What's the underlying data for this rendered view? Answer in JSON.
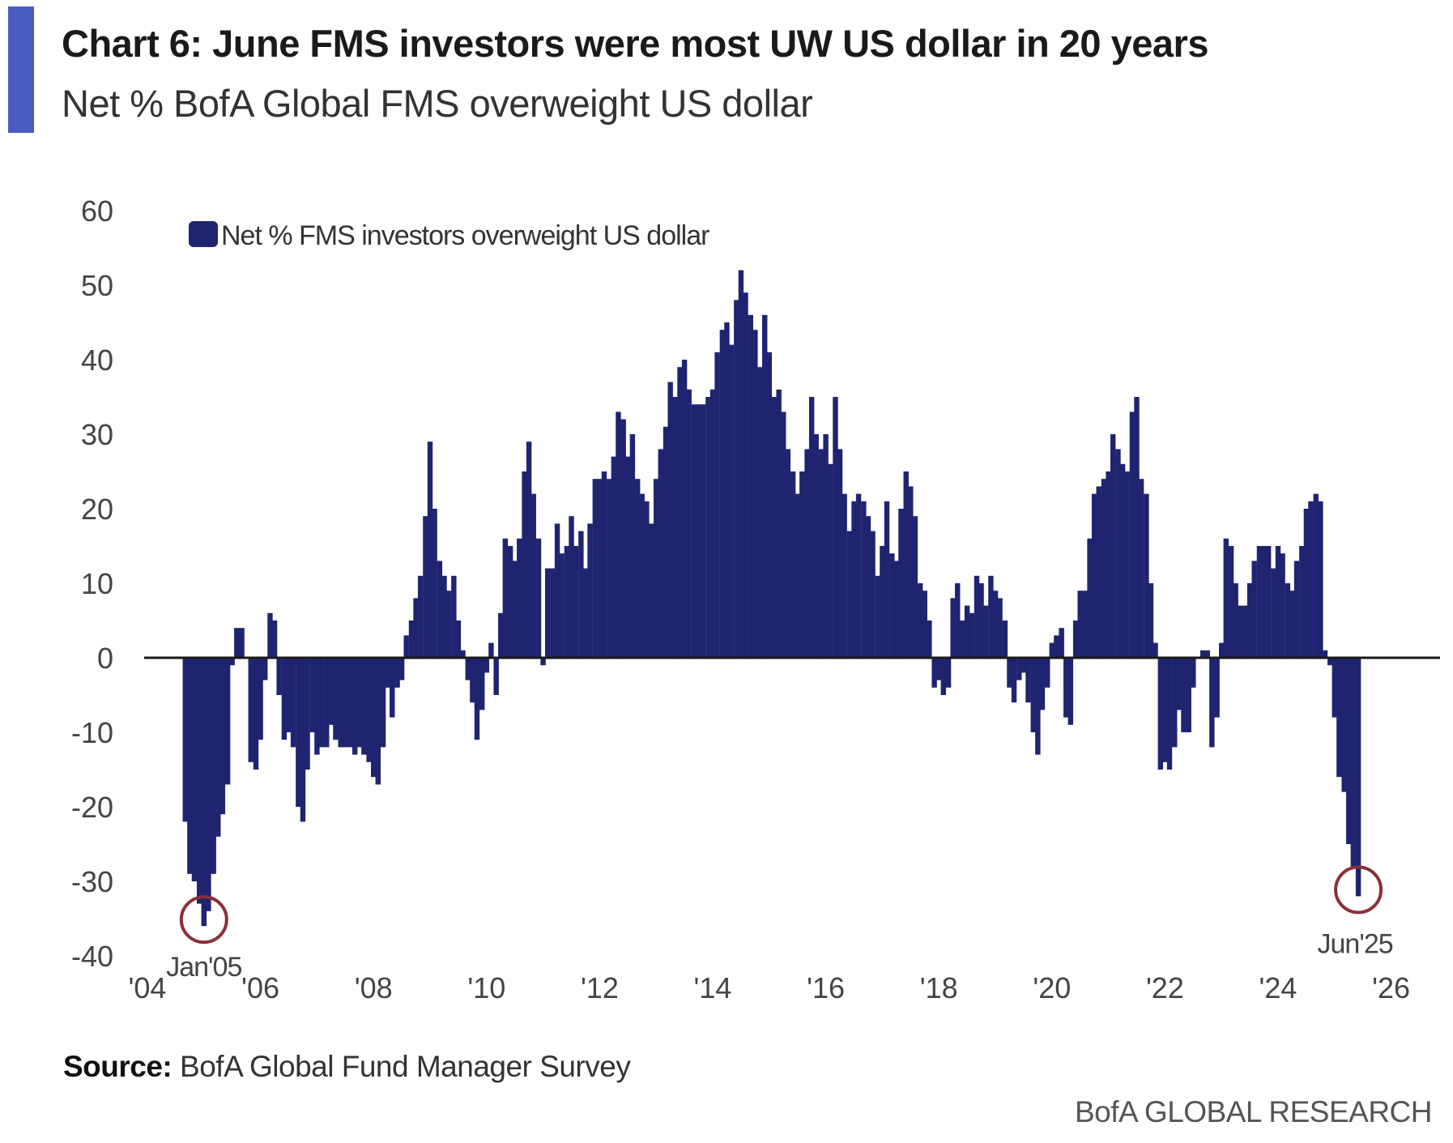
{
  "chart_data": {
    "type": "bar",
    "title": "Chart 6: June FMS investors were most UW US dollar in 20 years",
    "subtitle": "Net % BofA Global FMS overweight US dollar",
    "legend": {
      "label": "Net % FMS investors overweight US dollar",
      "position": "top-left"
    },
    "xlabel": "",
    "ylabel": "",
    "ylim": [
      -40,
      60
    ],
    "yticks": [
      60,
      50,
      40,
      30,
      20,
      10,
      0,
      -10,
      -20,
      -30,
      -40
    ],
    "xlim": [
      2004,
      2026.5
    ],
    "xticks": [
      {
        "year": 2004,
        "label": "'04"
      },
      {
        "year": 2006,
        "label": "'06"
      },
      {
        "year": 2008,
        "label": "'08"
      },
      {
        "year": 2010,
        "label": "'10"
      },
      {
        "year": 2012,
        "label": "'12"
      },
      {
        "year": 2014,
        "label": "'14"
      },
      {
        "year": 2016,
        "label": "'16"
      },
      {
        "year": 2018,
        "label": "'18"
      },
      {
        "year": 2020,
        "label": "'20"
      },
      {
        "year": 2022,
        "label": "'22"
      },
      {
        "year": 2024,
        "label": "'24"
      },
      {
        "year": 2026,
        "label": "'26"
      }
    ],
    "grid": false,
    "series": [
      {
        "name": "Net % FMS investors overweight US dollar",
        "color": "#1f2470",
        "points": [
          [
            2004.67,
            -22
          ],
          [
            2004.75,
            -29
          ],
          [
            2004.83,
            -30
          ],
          [
            2004.92,
            -33
          ],
          [
            2005.0,
            -36
          ],
          [
            2005.08,
            -34
          ],
          [
            2005.17,
            -29
          ],
          [
            2005.25,
            -24
          ],
          [
            2005.33,
            -21
          ],
          [
            2005.42,
            -17
          ],
          [
            2005.5,
            -1
          ],
          [
            2005.58,
            4
          ],
          [
            2005.67,
            4
          ],
          [
            2005.75,
            0
          ],
          [
            2005.83,
            -14
          ],
          [
            2005.92,
            -15
          ],
          [
            2006.0,
            -11
          ],
          [
            2006.08,
            -3
          ],
          [
            2006.17,
            6
          ],
          [
            2006.25,
            5
          ],
          [
            2006.33,
            -5
          ],
          [
            2006.42,
            -11
          ],
          [
            2006.5,
            -10
          ],
          [
            2006.58,
            -12
          ],
          [
            2006.67,
            -20
          ],
          [
            2006.75,
            -22
          ],
          [
            2006.83,
            -15
          ],
          [
            2006.92,
            -10
          ],
          [
            2007.0,
            -13
          ],
          [
            2007.08,
            -12
          ],
          [
            2007.17,
            -12
          ],
          [
            2007.25,
            -9
          ],
          [
            2007.33,
            -11
          ],
          [
            2007.42,
            -12
          ],
          [
            2007.5,
            -12
          ],
          [
            2007.58,
            -12
          ],
          [
            2007.67,
            -13
          ],
          [
            2007.75,
            -12
          ],
          [
            2007.83,
            -13
          ],
          [
            2007.92,
            -14
          ],
          [
            2008.0,
            -16
          ],
          [
            2008.08,
            -17
          ],
          [
            2008.17,
            -12
          ],
          [
            2008.25,
            -4
          ],
          [
            2008.33,
            -8
          ],
          [
            2008.42,
            -4
          ],
          [
            2008.5,
            -3
          ],
          [
            2008.58,
            3
          ],
          [
            2008.67,
            5
          ],
          [
            2008.75,
            8
          ],
          [
            2008.83,
            11
          ],
          [
            2008.92,
            19
          ],
          [
            2009.0,
            29
          ],
          [
            2009.08,
            20
          ],
          [
            2009.17,
            13
          ],
          [
            2009.25,
            11
          ],
          [
            2009.33,
            9
          ],
          [
            2009.42,
            11
          ],
          [
            2009.5,
            5
          ],
          [
            2009.58,
            1
          ],
          [
            2009.67,
            -3
          ],
          [
            2009.75,
            -6
          ],
          [
            2009.83,
            -11
          ],
          [
            2009.92,
            -7
          ],
          [
            2010.0,
            -2
          ],
          [
            2010.08,
            2
          ],
          [
            2010.17,
            -5
          ],
          [
            2010.25,
            6
          ],
          [
            2010.33,
            16
          ],
          [
            2010.42,
            15
          ],
          [
            2010.5,
            13
          ],
          [
            2010.58,
            16
          ],
          [
            2010.67,
            25
          ],
          [
            2010.75,
            29
          ],
          [
            2010.83,
            22
          ],
          [
            2010.92,
            16
          ],
          [
            2011.0,
            -1
          ],
          [
            2011.08,
            12
          ],
          [
            2011.17,
            12
          ],
          [
            2011.25,
            18
          ],
          [
            2011.33,
            14
          ],
          [
            2011.42,
            15
          ],
          [
            2011.5,
            19
          ],
          [
            2011.58,
            15
          ],
          [
            2011.67,
            17
          ],
          [
            2011.75,
            12
          ],
          [
            2011.83,
            18
          ],
          [
            2011.92,
            24
          ],
          [
            2012.0,
            24
          ],
          [
            2012.08,
            25
          ],
          [
            2012.17,
            24
          ],
          [
            2012.25,
            27
          ],
          [
            2012.33,
            33
          ],
          [
            2012.42,
            32
          ],
          [
            2012.5,
            27
          ],
          [
            2012.58,
            30
          ],
          [
            2012.67,
            24
          ],
          [
            2012.75,
            22
          ],
          [
            2012.83,
            21
          ],
          [
            2012.92,
            18
          ],
          [
            2013.0,
            24
          ],
          [
            2013.08,
            28
          ],
          [
            2013.17,
            31
          ],
          [
            2013.25,
            37
          ],
          [
            2013.33,
            35
          ],
          [
            2013.42,
            39
          ],
          [
            2013.5,
            40
          ],
          [
            2013.58,
            36
          ],
          [
            2013.67,
            34
          ],
          [
            2013.75,
            34
          ],
          [
            2013.83,
            34
          ],
          [
            2013.92,
            35
          ],
          [
            2014.0,
            36
          ],
          [
            2014.08,
            41
          ],
          [
            2014.17,
            44
          ],
          [
            2014.25,
            45
          ],
          [
            2014.33,
            42
          ],
          [
            2014.42,
            48
          ],
          [
            2014.5,
            52
          ],
          [
            2014.58,
            49
          ],
          [
            2014.67,
            46
          ],
          [
            2014.75,
            44
          ],
          [
            2014.83,
            39
          ],
          [
            2014.92,
            46
          ],
          [
            2015.0,
            41
          ],
          [
            2015.08,
            35
          ],
          [
            2015.17,
            36
          ],
          [
            2015.25,
            33
          ],
          [
            2015.33,
            28
          ],
          [
            2015.42,
            25
          ],
          [
            2015.5,
            22
          ],
          [
            2015.58,
            25
          ],
          [
            2015.67,
            28
          ],
          [
            2015.75,
            35
          ],
          [
            2015.83,
            30
          ],
          [
            2015.92,
            28
          ],
          [
            2016.0,
            30
          ],
          [
            2016.08,
            26
          ],
          [
            2016.17,
            35
          ],
          [
            2016.25,
            28
          ],
          [
            2016.33,
            22
          ],
          [
            2016.42,
            17
          ],
          [
            2016.5,
            21
          ],
          [
            2016.58,
            22
          ],
          [
            2016.67,
            21
          ],
          [
            2016.75,
            19
          ],
          [
            2016.83,
            17
          ],
          [
            2016.92,
            11
          ],
          [
            2017.0,
            15
          ],
          [
            2017.08,
            21
          ],
          [
            2017.17,
            14
          ],
          [
            2017.25,
            13
          ],
          [
            2017.33,
            20
          ],
          [
            2017.42,
            25
          ],
          [
            2017.5,
            23
          ],
          [
            2017.58,
            19
          ],
          [
            2017.67,
            10
          ],
          [
            2017.75,
            9
          ],
          [
            2017.83,
            5
          ],
          [
            2017.92,
            -4
          ],
          [
            2018.0,
            -3
          ],
          [
            2018.08,
            -5
          ],
          [
            2018.17,
            -4
          ],
          [
            2018.25,
            8
          ],
          [
            2018.33,
            10
          ],
          [
            2018.42,
            5
          ],
          [
            2018.5,
            7
          ],
          [
            2018.58,
            6
          ],
          [
            2018.67,
            11
          ],
          [
            2018.75,
            10
          ],
          [
            2018.83,
            7
          ],
          [
            2018.92,
            11
          ],
          [
            2019.0,
            9
          ],
          [
            2019.08,
            8
          ],
          [
            2019.17,
            5
          ],
          [
            2019.25,
            -4
          ],
          [
            2019.33,
            -6
          ],
          [
            2019.42,
            -3
          ],
          [
            2019.5,
            -2
          ],
          [
            2019.58,
            -6
          ],
          [
            2019.67,
            -10
          ],
          [
            2019.75,
            -13
          ],
          [
            2019.83,
            -7
          ],
          [
            2019.92,
            -4
          ],
          [
            2020.0,
            2
          ],
          [
            2020.08,
            3
          ],
          [
            2020.17,
            4
          ],
          [
            2020.25,
            -8
          ],
          [
            2020.33,
            -9
          ],
          [
            2020.42,
            5
          ],
          [
            2020.5,
            9
          ],
          [
            2020.58,
            9
          ],
          [
            2020.67,
            16
          ],
          [
            2020.75,
            22
          ],
          [
            2020.83,
            23
          ],
          [
            2020.92,
            24
          ],
          [
            2021.0,
            25
          ],
          [
            2021.08,
            30
          ],
          [
            2021.17,
            28
          ],
          [
            2021.25,
            26
          ],
          [
            2021.33,
            25
          ],
          [
            2021.42,
            33
          ],
          [
            2021.5,
            35
          ],
          [
            2021.58,
            24
          ],
          [
            2021.67,
            22
          ],
          [
            2021.75,
            10
          ],
          [
            2021.83,
            2
          ],
          [
            2021.92,
            -15
          ],
          [
            2022.0,
            -14
          ],
          [
            2022.08,
            -15
          ],
          [
            2022.17,
            -12
          ],
          [
            2022.25,
            -7
          ],
          [
            2022.33,
            -10
          ],
          [
            2022.42,
            -10
          ],
          [
            2022.5,
            -4
          ],
          [
            2022.58,
            0
          ],
          [
            2022.67,
            1
          ],
          [
            2022.75,
            1
          ],
          [
            2022.83,
            -12
          ],
          [
            2022.92,
            -8
          ],
          [
            2023.0,
            2
          ],
          [
            2023.08,
            16
          ],
          [
            2023.17,
            15
          ],
          [
            2023.25,
            10
          ],
          [
            2023.33,
            7
          ],
          [
            2023.42,
            7
          ],
          [
            2023.5,
            10
          ],
          [
            2023.58,
            13
          ],
          [
            2023.67,
            15
          ],
          [
            2023.75,
            15
          ],
          [
            2023.83,
            15
          ],
          [
            2023.92,
            12
          ],
          [
            2024.0,
            15
          ],
          [
            2024.08,
            14
          ],
          [
            2024.17,
            10
          ],
          [
            2024.25,
            9
          ],
          [
            2024.33,
            13
          ],
          [
            2024.42,
            15
          ],
          [
            2024.5,
            20
          ],
          [
            2024.58,
            21
          ],
          [
            2024.67,
            22
          ],
          [
            2024.75,
            21
          ],
          [
            2024.83,
            1
          ],
          [
            2024.92,
            -1
          ],
          [
            2025.0,
            -8
          ],
          [
            2025.08,
            -16
          ],
          [
            2025.17,
            -18
          ],
          [
            2025.25,
            -25
          ],
          [
            2025.33,
            -28
          ],
          [
            2025.42,
            -32
          ]
        ]
      }
    ],
    "annotations": [
      {
        "label": "Jan'05",
        "x": 2005.0,
        "y": -36
      },
      {
        "label": "Jun'25",
        "x": 2025.42,
        "y": -32
      }
    ]
  },
  "source": {
    "label": "Source:",
    "text": "BofA Global Fund Manager Survey"
  },
  "brand": "BofA GLOBAL RESEARCH",
  "colors": {
    "accent_bar": "#4a5bc4",
    "bars": "#1f2470",
    "circle": "#8b2e3a"
  }
}
